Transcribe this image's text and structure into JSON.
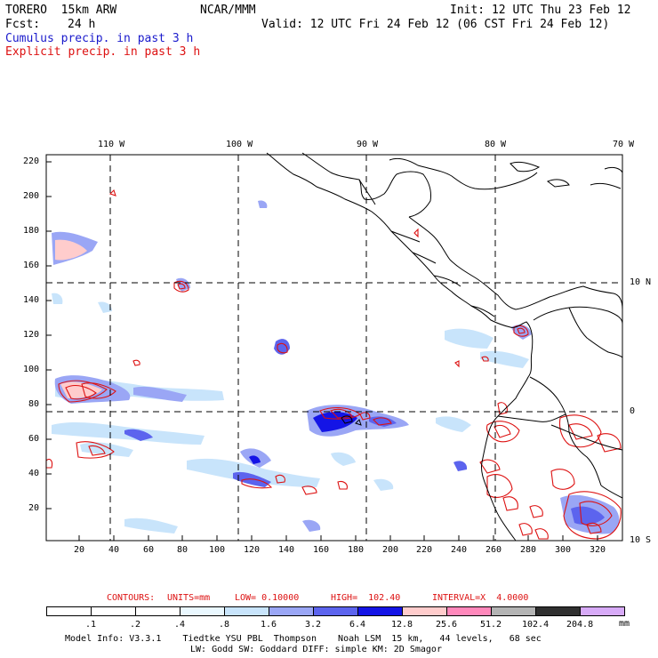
{
  "header": {
    "model": "TORERO  15km ARW",
    "org": "NCAR/MMM",
    "init": "Init: 12 UTC Thu 23 Feb 12",
    "fcst_label": "Fcst:",
    "fcst_value": "24 h",
    "valid": "Valid: 12 UTC Fri 24 Feb 12 (06 CST Fri 24 Feb 12)",
    "line_cumulus": "Cumulus precip. in past 3 h",
    "line_explicit": "Explicit precip. in past 3 h"
  },
  "top_axis": [
    "110 W",
    "100 W",
    "90 W",
    "80 W",
    "70 W"
  ],
  "right_axis": [
    "10 N",
    "0",
    "10 S"
  ],
  "left_axis": [
    "220",
    "200",
    "180",
    "160",
    "140",
    "120",
    "100",
    "80",
    "60",
    "40",
    "20"
  ],
  "bottom_axis": [
    "20",
    "40",
    "60",
    "80",
    "100",
    "120",
    "140",
    "160",
    "180",
    "200",
    "220",
    "240",
    "260",
    "280",
    "300",
    "320"
  ],
  "contours": {
    "label": "CONTOURS:",
    "units": "UNITS=mm",
    "low": "LOW= 0.10000",
    "high": "HIGH=  102.40",
    "interval": "INTERVAL=X  4.0000"
  },
  "colorbar": {
    "labels": [
      ".1",
      ".2",
      ".4",
      ".8",
      "1.6",
      "3.2",
      "6.4",
      "12.8",
      "25.6",
      "51.2",
      "102.4",
      "204.8"
    ],
    "unit": "mm",
    "colors": [
      "#ffffff",
      "#ffffff",
      "#ffffff",
      "#eaf8ff",
      "#c8e4fb",
      "#9aa6f5",
      "#5c64ee",
      "#1414e6",
      "#ffcccc",
      "#ff88bb",
      "#b4b4b4",
      "#303030",
      "#d7aaf7"
    ]
  },
  "footer": {
    "line1": "Model Info: V3.3.1    Tiedtke YSU PBL  Thompson    Noah LSM  15 km,   44 levels,   68 sec",
    "line2": "LW: Godd SW: Goddard DIFF: simple KM: 2D Smagor"
  }
}
